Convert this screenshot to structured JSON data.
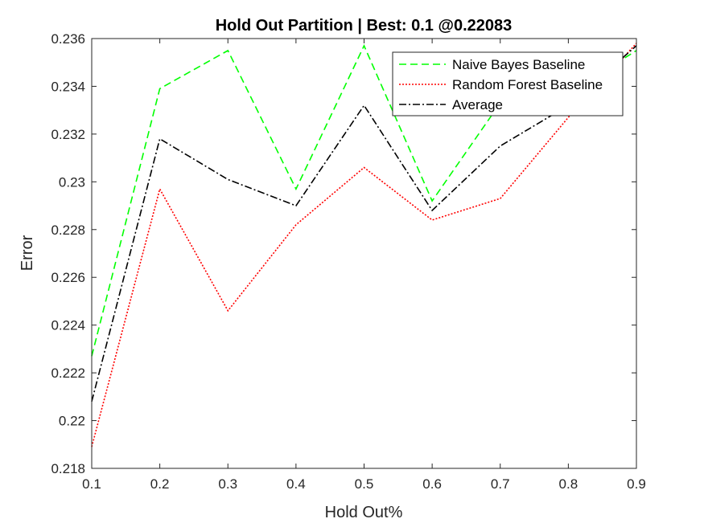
{
  "chart_data": {
    "type": "line",
    "title": "Hold Out Partition | Best: 0.1 @0.22083",
    "xlabel": "Hold Out%",
    "ylabel": "Error",
    "xlim": [
      0.1,
      0.9
    ],
    "ylim": [
      0.218,
      0.236
    ],
    "x": [
      0.1,
      0.2,
      0.3,
      0.4,
      0.5,
      0.6,
      0.7,
      0.8,
      0.9
    ],
    "x_ticks": [
      "0.1",
      "0.2",
      "0.3",
      "0.4",
      "0.5",
      "0.6",
      "0.7",
      "0.8",
      "0.9"
    ],
    "y_ticks": [
      "0.218",
      "0.22",
      "0.222",
      "0.224",
      "0.226",
      "0.228",
      "0.23",
      "0.232",
      "0.234",
      "0.236"
    ],
    "y_tick_values": [
      0.218,
      0.22,
      0.222,
      0.224,
      0.226,
      0.228,
      0.23,
      0.232,
      0.234,
      0.236
    ],
    "grid": false,
    "legend_position": "top-right",
    "series": [
      {
        "name": "Naive Bayes Baseline",
        "color": "#00ff00",
        "line_style": "dashed",
        "values": [
          0.2227,
          0.2339,
          0.2355,
          0.2297,
          0.2357,
          0.2292,
          0.2333,
          0.2337,
          0.2355
        ]
      },
      {
        "name": "Random Forest Baseline",
        "color": "#ff0000",
        "line_style": "dotted",
        "values": [
          0.2189,
          0.2297,
          0.2246,
          0.2282,
          0.2306,
          0.2284,
          0.2293,
          0.2327,
          0.2358
        ]
      },
      {
        "name": "Average",
        "color": "#000000",
        "line_style": "dash-dot",
        "values": [
          0.2208,
          0.2318,
          0.2301,
          0.229,
          0.2332,
          0.2288,
          0.2315,
          0.2332,
          0.2357
        ]
      }
    ]
  }
}
